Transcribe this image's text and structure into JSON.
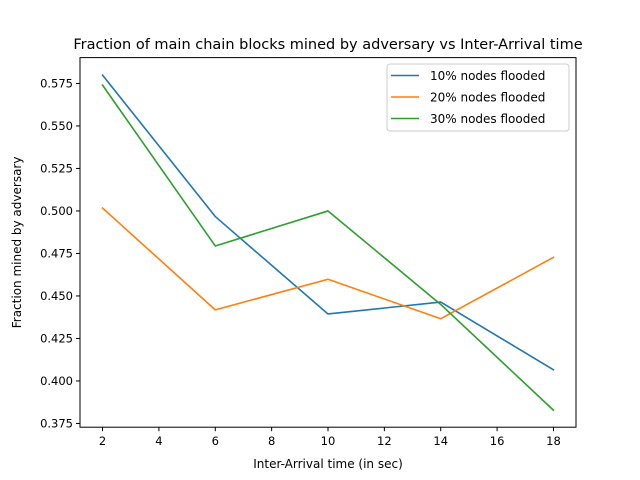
{
  "chart_data": {
    "type": "line",
    "title": "Fraction of main chain blocks mined by adversary vs Inter-Arrival time",
    "xlabel": "Inter-Arrival time (in sec)",
    "ylabel": "Fraction mined by adversary",
    "x": [
      2,
      6,
      10,
      14,
      18
    ],
    "xlim": [
      1.2,
      18.8
    ],
    "ylim": [
      0.3728,
      0.5902
    ],
    "xticks": [
      2,
      4,
      6,
      8,
      10,
      12,
      14,
      16,
      18
    ],
    "yticks": [
      0.375,
      0.4,
      0.425,
      0.45,
      0.475,
      0.5,
      0.525,
      0.55,
      0.575
    ],
    "ytick_labels": [
      "0.375",
      "0.400",
      "0.425",
      "0.450",
      "0.475",
      "0.500",
      "0.525",
      "0.550",
      "0.575"
    ],
    "grid": false,
    "legend_position": "upper right",
    "series": [
      {
        "name": "10% nodes flooded",
        "color": "#1f77b4",
        "values": [
          0.5799,
          0.4967,
          0.4394,
          0.4464,
          0.4066
        ]
      },
      {
        "name": "20% nodes flooded",
        "color": "#ff7f0e",
        "values": [
          0.5017,
          0.4418,
          0.4598,
          0.4366,
          0.4727
        ]
      },
      {
        "name": "30% nodes flooded",
        "color": "#2ca02c",
        "values": [
          0.574,
          0.4794,
          0.5,
          0.445,
          0.3828
        ]
      }
    ]
  }
}
